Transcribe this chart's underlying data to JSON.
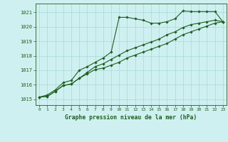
{
  "title": "Graphe pression niveau de la mer (hPa)",
  "bg_color": "#cff0f0",
  "grid_color": "#a8d8d8",
  "line_color": "#1e5e1e",
  "xlim": [
    -0.5,
    23.5
  ],
  "ylim": [
    1014.6,
    1021.6
  ],
  "yticks": [
    1015,
    1016,
    1017,
    1018,
    1019,
    1020,
    1021
  ],
  "xticks": [
    0,
    1,
    2,
    3,
    4,
    5,
    6,
    7,
    8,
    9,
    10,
    11,
    12,
    13,
    14,
    15,
    16,
    17,
    18,
    19,
    20,
    21,
    22,
    23
  ],
  "series1": [
    1015.15,
    1015.3,
    1015.65,
    1016.15,
    1016.3,
    1017.0,
    1017.25,
    1017.55,
    1017.85,
    1018.25,
    1020.65,
    1020.65,
    1020.55,
    1020.45,
    1020.25,
    1020.25,
    1020.35,
    1020.55,
    1021.1,
    1021.05,
    1021.05,
    1021.05,
    1021.05,
    1020.35
  ],
  "series2": [
    1015.15,
    1015.2,
    1015.55,
    1015.95,
    1016.05,
    1016.45,
    1016.75,
    1017.05,
    1017.15,
    1017.35,
    1017.55,
    1017.85,
    1018.05,
    1018.25,
    1018.45,
    1018.65,
    1018.85,
    1019.15,
    1019.45,
    1019.65,
    1019.85,
    1020.05,
    1020.25,
    1020.35
  ],
  "series3": [
    1015.15,
    1015.2,
    1015.55,
    1015.95,
    1016.05,
    1016.45,
    1016.85,
    1017.25,
    1017.45,
    1017.75,
    1018.05,
    1018.35,
    1018.55,
    1018.75,
    1018.95,
    1019.15,
    1019.45,
    1019.65,
    1019.95,
    1020.15,
    1020.25,
    1020.35,
    1020.45,
    1020.35
  ],
  "figwidth": 3.2,
  "figheight": 2.0,
  "dpi": 100
}
